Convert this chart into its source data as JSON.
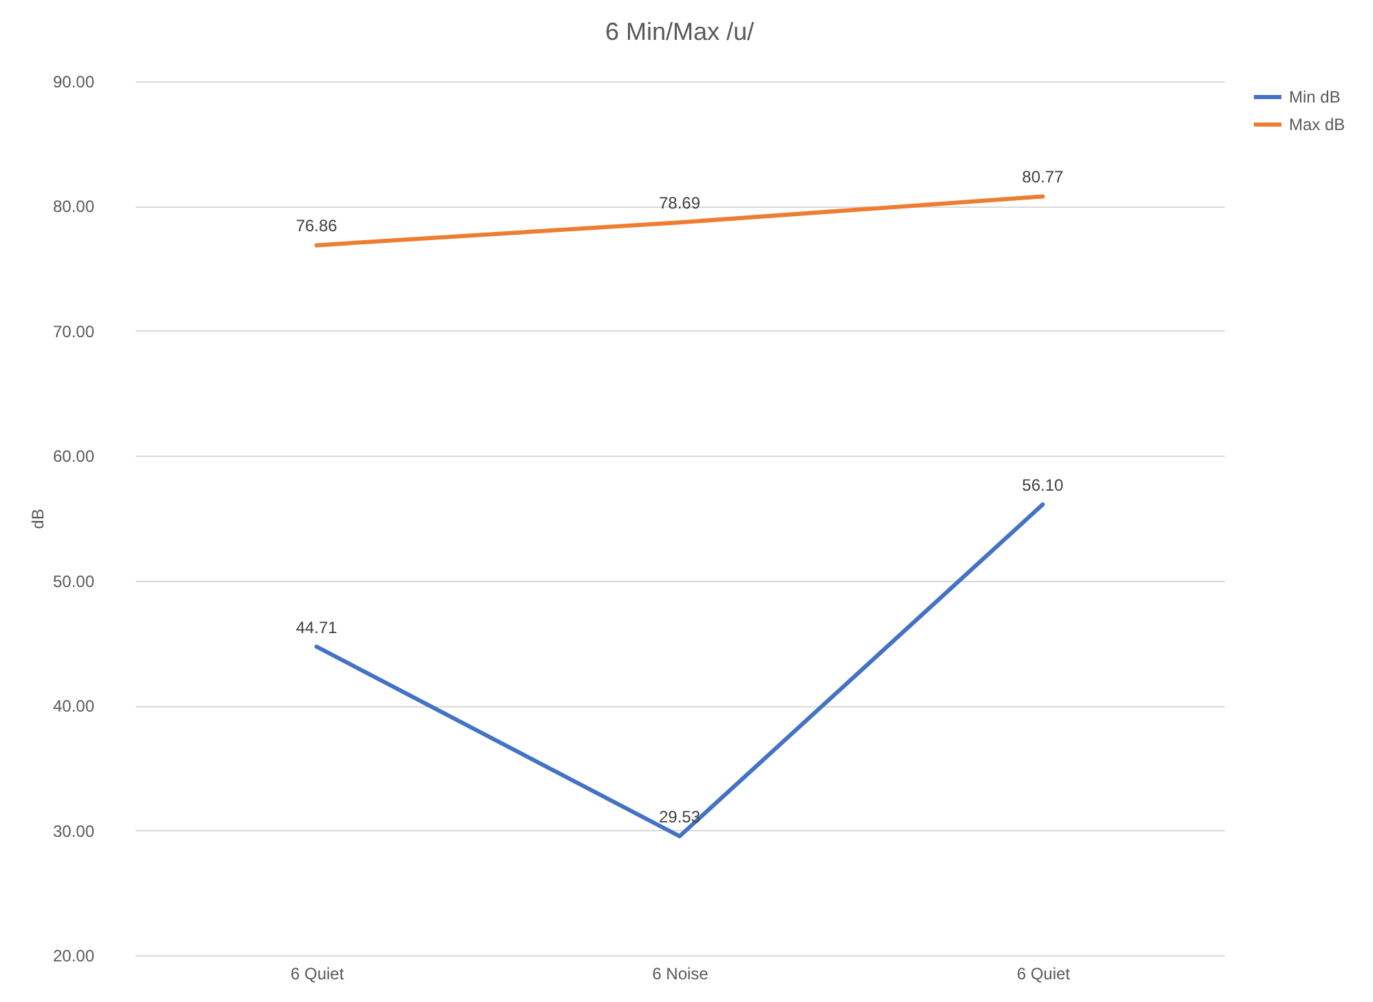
{
  "chart_data": {
    "type": "line",
    "title": "6 Min/Max /u/",
    "ylabel": "dB",
    "categories": [
      "6 Quiet",
      "6 Noise",
      "6 Quiet"
    ],
    "series": [
      {
        "name": "Min dB",
        "color": "#4472c4",
        "values": [
          44.71,
          29.53,
          56.1
        ],
        "value_labels": [
          "44.71",
          "29.53",
          "56.10"
        ]
      },
      {
        "name": "Max dB",
        "color": "#ed7d31",
        "values": [
          76.86,
          78.69,
          80.77
        ],
        "value_labels": [
          "76.86",
          "78.69",
          "80.77"
        ]
      }
    ],
    "ylim": [
      20,
      90
    ],
    "yticks": [
      {
        "value": 20,
        "label": "20.00"
      },
      {
        "value": 30,
        "label": "30.00"
      },
      {
        "value": 40,
        "label": "40.00"
      },
      {
        "value": 50,
        "label": "50.00"
      },
      {
        "value": 60,
        "label": "60.00"
      },
      {
        "value": 70,
        "label": "70.00"
      },
      {
        "value": 80,
        "label": "80.00"
      },
      {
        "value": 90,
        "label": "90.00"
      }
    ],
    "grid": "y",
    "legend": "right",
    "marker": "none",
    "line_style": "solid"
  }
}
